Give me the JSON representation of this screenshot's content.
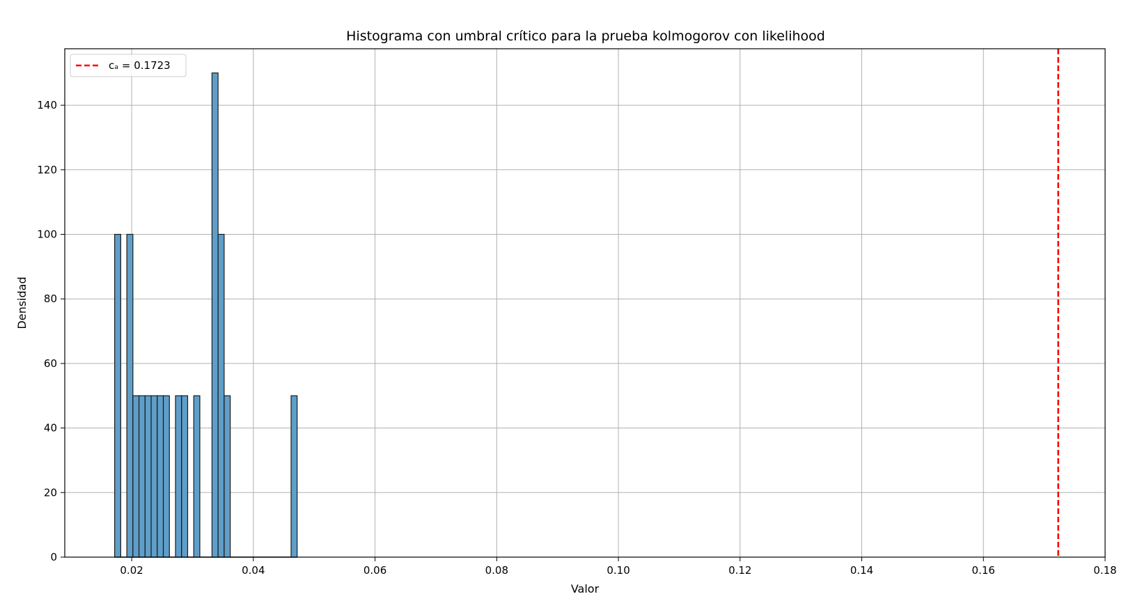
{
  "chart_data": {
    "type": "bar",
    "title": "Histograma con umbral crítico para la prueba kolmogorov con  likelihood",
    "xlabel": "Valor",
    "ylabel": "Densidad",
    "xlim": [
      0.009,
      0.18
    ],
    "ylim": [
      0,
      157.5
    ],
    "bin_width": 0.001,
    "bins": [
      {
        "start": 0.0172,
        "value": 100
      },
      {
        "start": 0.0192,
        "value": 100
      },
      {
        "start": 0.0202,
        "value": 50
      },
      {
        "start": 0.0212,
        "value": 50
      },
      {
        "start": 0.0222,
        "value": 50
      },
      {
        "start": 0.0232,
        "value": 50
      },
      {
        "start": 0.0242,
        "value": 50
      },
      {
        "start": 0.0252,
        "value": 50
      },
      {
        "start": 0.0272,
        "value": 50
      },
      {
        "start": 0.0282,
        "value": 50
      },
      {
        "start": 0.0302,
        "value": 50
      },
      {
        "start": 0.0332,
        "value": 150
      },
      {
        "start": 0.0342,
        "value": 100
      },
      {
        "start": 0.0352,
        "value": 50
      },
      {
        "start": 0.0462,
        "value": 50
      }
    ],
    "baseline_range": [
      0.0172,
      0.0472
    ],
    "x_ticks": [
      "0.02",
      "0.04",
      "0.06",
      "0.08",
      "0.10",
      "0.12",
      "0.14",
      "0.16",
      "0.18"
    ],
    "x_tick_values": [
      0.02,
      0.04,
      0.06,
      0.08,
      0.1,
      0.12,
      0.14,
      0.16,
      0.18
    ],
    "y_ticks": [
      "0",
      "20",
      "40",
      "60",
      "80",
      "100",
      "120",
      "140"
    ],
    "y_tick_values": [
      0,
      20,
      40,
      60,
      80,
      100,
      120,
      140
    ],
    "threshold": {
      "value": 0.1723,
      "label": "cₐ = 0.1723",
      "color": "#ff0000",
      "style": "dashed"
    },
    "bar_color": "#5f9ec9",
    "bar_edge_color": "#1a1a1a",
    "grid": true,
    "legend_position": "top-left"
  }
}
